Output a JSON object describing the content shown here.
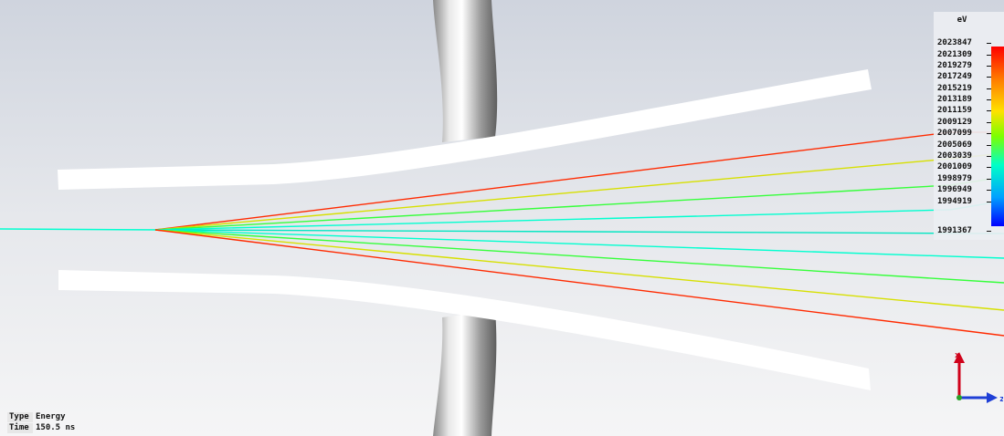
{
  "legend": {
    "unit": "eV",
    "values": [
      "2023847",
      "2021309",
      "2019279",
      "2017249",
      "2015219",
      "2013189",
      "2011159",
      "2009129",
      "2007099",
      "2005069",
      "2003039",
      "2001009",
      "1998979",
      "1996949",
      "1994919",
      "1991367"
    ]
  },
  "info": {
    "type_label": "Type",
    "type_value": "Energy",
    "time_label": "Time",
    "time_value": "150.5 ns"
  },
  "axes": {
    "x_label": "x",
    "z_label": "z",
    "x_color": "#d0021b",
    "z_color": "#1f3fd6"
  },
  "colors": {
    "bg_top": "#d9dde6",
    "bg_bottom": "#f3f4f6",
    "electrode": "#ffffff",
    "trajectories": [
      "#ff2a00",
      "#d7e000",
      "#35ff3a",
      "#00ffd0",
      "#00e6c2",
      "#00ffd0",
      "#35ff3a",
      "#d7e000",
      "#ff2a00"
    ]
  }
}
